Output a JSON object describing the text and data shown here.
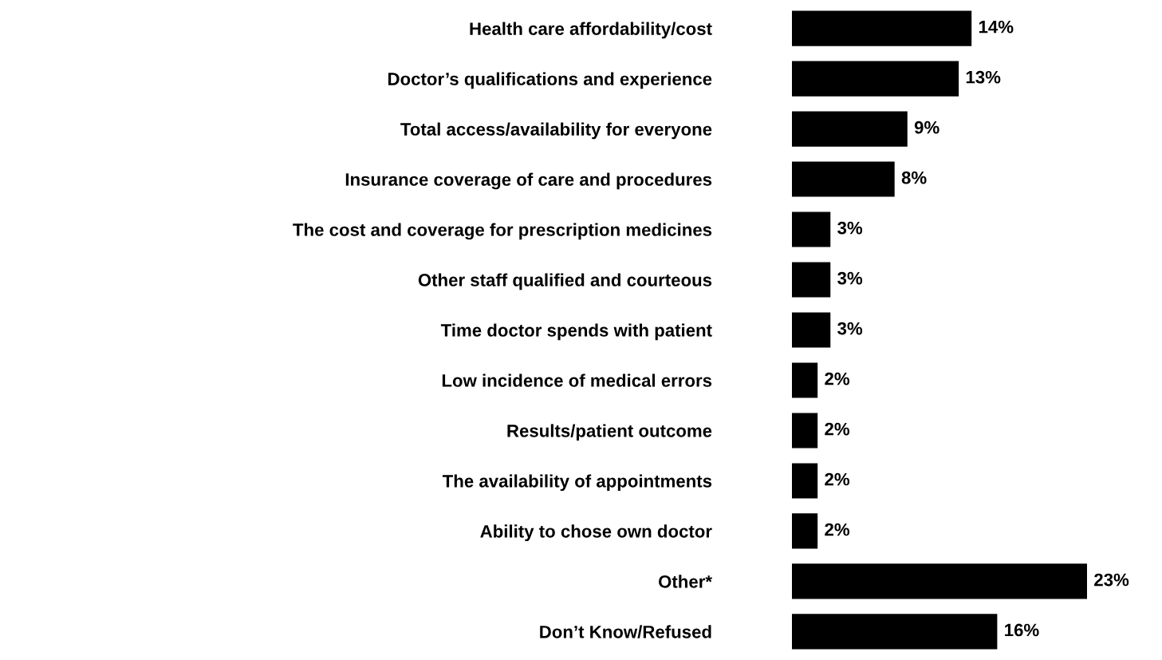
{
  "chart_data": {
    "type": "bar",
    "orientation": "horizontal",
    "tick_labels": "y",
    "color": "#000000",
    "categories": [
      "Health care affordability/cost",
      "Doctor’s qualifications and experience",
      "Total access/availability for everyone",
      "Insurance coverage of care and procedures",
      "The cost and coverage for prescription medicines",
      "Other staff qualified and courteous",
      "Time doctor spends with patient",
      "Low incidence of medical errors",
      "Results/patient outcome",
      "The availability of appointments",
      "Ability to chose own doctor",
      "Other*",
      "Don’t Know/Refused"
    ],
    "values": [
      14,
      13,
      9,
      8,
      3,
      3,
      3,
      2,
      2,
      2,
      2,
      23,
      16
    ],
    "value_labels": [
      "14%",
      "13%",
      "9%",
      "8%",
      "3%",
      "3%",
      "3%",
      "2%",
      "2%",
      "2%",
      "2%",
      "23%",
      "16%"
    ]
  }
}
